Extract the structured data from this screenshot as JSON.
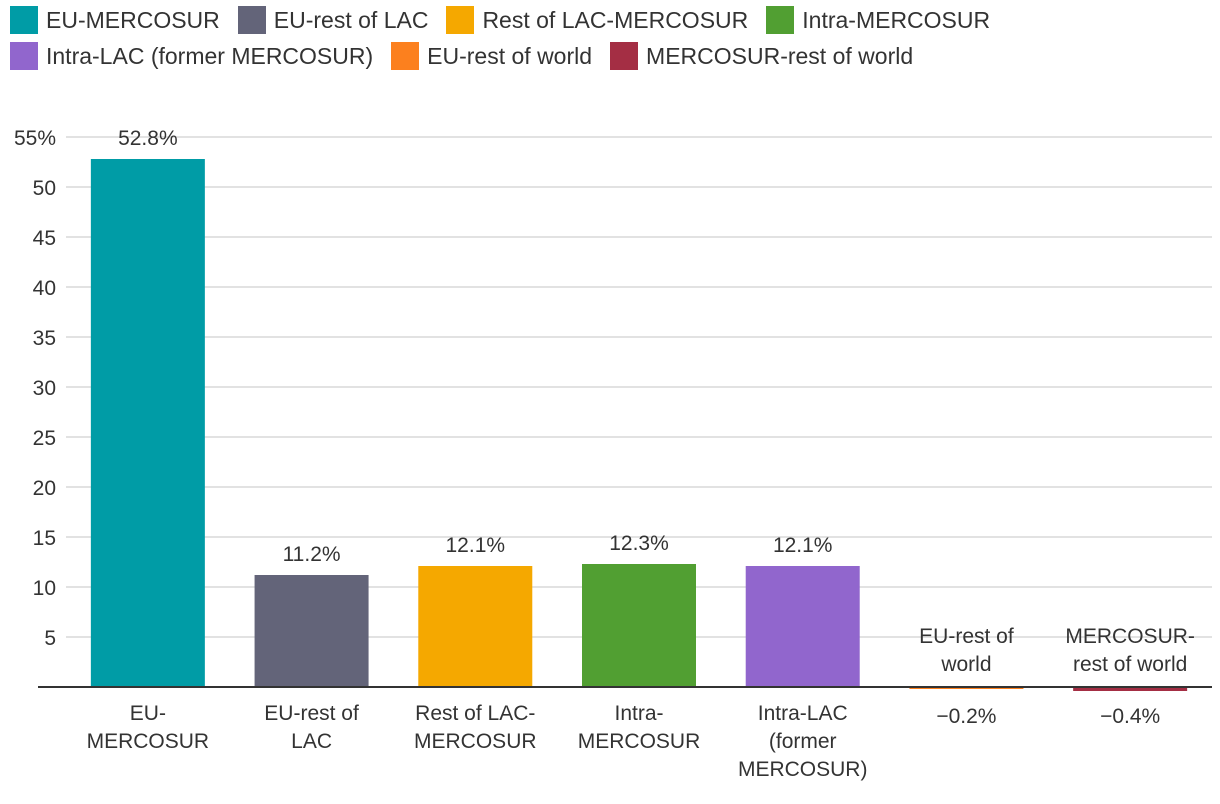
{
  "chart_data": {
    "type": "bar",
    "categories": [
      [
        "EU-",
        "MERCOSUR"
      ],
      [
        "EU-rest of",
        "LAC"
      ],
      [
        "Rest of LAC-",
        "MERCOSUR"
      ],
      [
        "Intra-",
        "MERCOSUR"
      ],
      [
        "Intra-LAC",
        "(former",
        "MERCOSUR)"
      ],
      [
        "EU-rest of",
        "world"
      ],
      [
        "MERCOSUR-",
        "rest of world"
      ]
    ],
    "values": [
      52.8,
      11.2,
      12.1,
      12.3,
      12.1,
      -0.2,
      -0.4
    ],
    "data_labels": [
      "52.8%",
      "11.2%",
      "12.1%",
      "12.3%",
      "12.1%",
      "−0.2%",
      "−0.4%"
    ],
    "colors": [
      "#009ca6",
      "#636479",
      "#f5a800",
      "#519f32",
      "#9166cd",
      "#fc801e",
      "#a42e44"
    ],
    "legend": [
      "EU-MERCOSUR",
      "EU-rest of LAC",
      "Rest of LAC-MERCOSUR",
      "Intra-MERCOSUR",
      "Intra-LAC (former MERCOSUR)",
      "EU-rest of world",
      "MERCOSUR-rest of world"
    ],
    "legend_position": "top",
    "y_ticks": [
      "55%",
      "50",
      "45",
      "40",
      "35",
      "30",
      "25",
      "20",
      "15",
      "10",
      "5"
    ],
    "y_tick_values": [
      55,
      50,
      45,
      40,
      35,
      30,
      25,
      20,
      15,
      10,
      5
    ],
    "ylim": [
      0,
      55
    ],
    "grid": true,
    "gridline_color": "#d9d9d9",
    "axis_color": "#333333"
  }
}
